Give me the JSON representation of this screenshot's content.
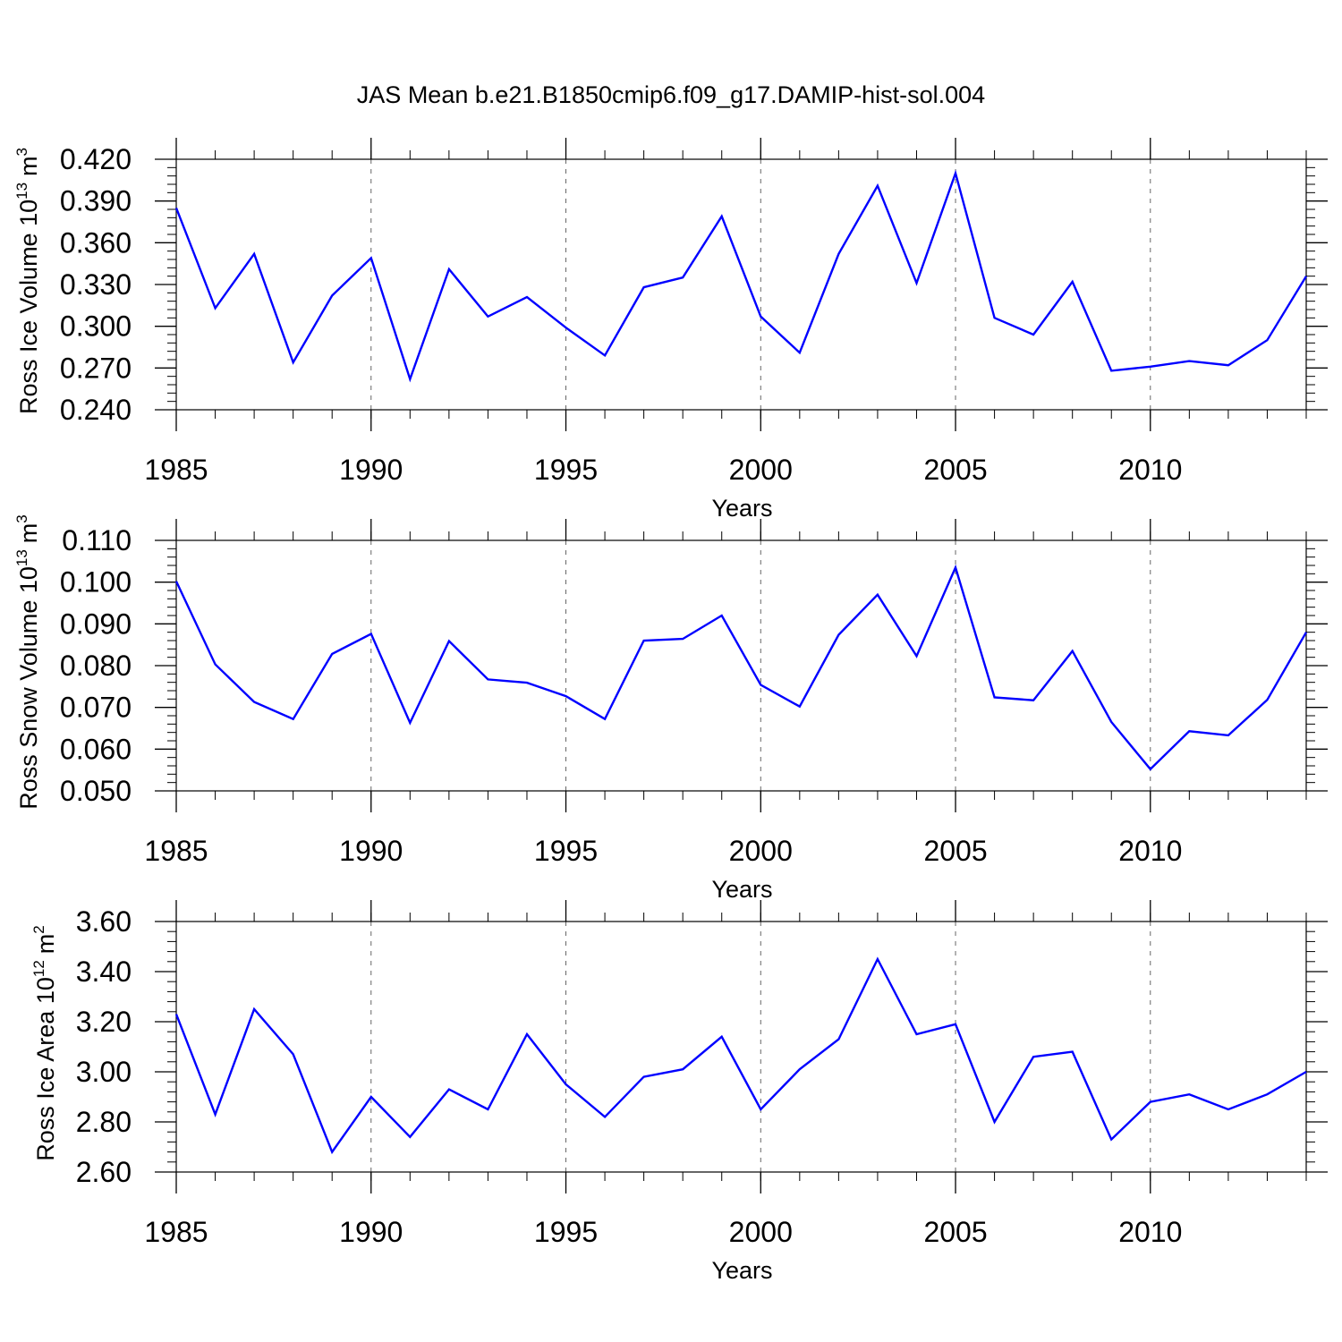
{
  "title": "JAS Mean b.e21.B1850cmip6.f09_g17.DAMIP-hist-sol.004",
  "colors": {
    "line": "#0000ff",
    "axis": "#000000",
    "grid": "#666666",
    "background": "#ffffff"
  },
  "chart_data": [
    {
      "type": "line",
      "ylabel_base": "Ross Ice Volume 10",
      "ylabel_exp": "13",
      "ylabel_unit": "m",
      "ylabel_unit_exp": "3",
      "xlabel": "Years",
      "xlim": [
        1985,
        2014
      ],
      "ylim": [
        0.24,
        0.42
      ],
      "ytick_values": [
        0.24,
        0.27,
        0.3,
        0.33,
        0.36,
        0.39,
        0.42
      ],
      "ytick_labels": [
        "0.240",
        "0.270",
        "0.300",
        "0.330",
        "0.360",
        "0.390",
        "0.420"
      ],
      "xtick_values": [
        1985,
        1990,
        1995,
        2000,
        2005,
        2010
      ],
      "xtick_labels": [
        "1985",
        "1990",
        "1995",
        "2000",
        "2005",
        "2010"
      ],
      "grid": "vertical dashed at major x ticks",
      "series": [
        {
          "name": "Ross Ice Volume",
          "x": [
            1985,
            1986,
            1987,
            1988,
            1989,
            1990,
            1991,
            1992,
            1993,
            1994,
            1995,
            1996,
            1997,
            1998,
            1999,
            2000,
            2001,
            2002,
            2003,
            2004,
            2005,
            2006,
            2007,
            2008,
            2009,
            2010,
            2011,
            2012,
            2013,
            2014
          ],
          "values": [
            0.385,
            0.313,
            0.352,
            0.274,
            0.322,
            0.349,
            0.262,
            0.341,
            0.307,
            0.321,
            0.299,
            0.279,
            0.328,
            0.335,
            0.379,
            0.307,
            0.281,
            0.352,
            0.401,
            0.331,
            0.41,
            0.306,
            0.294,
            0.332,
            0.268,
            0.271,
            0.275,
            0.272,
            0.29,
            0.336
          ]
        }
      ]
    },
    {
      "type": "line",
      "ylabel_base": "Ross Snow Volume 10",
      "ylabel_exp": "13",
      "ylabel_unit": "m",
      "ylabel_unit_exp": "3",
      "xlabel": "Years",
      "xlim": [
        1985,
        2014
      ],
      "ylim": [
        0.05,
        0.11
      ],
      "ytick_values": [
        0.05,
        0.06,
        0.07,
        0.08,
        0.09,
        0.1,
        0.11
      ],
      "ytick_labels": [
        "0.050",
        "0.060",
        "0.070",
        "0.080",
        "0.090",
        "0.100",
        "0.110"
      ],
      "xtick_values": [
        1985,
        1990,
        1995,
        2000,
        2005,
        2010
      ],
      "xtick_labels": [
        "1985",
        "1990",
        "1995",
        "2000",
        "2005",
        "2010"
      ],
      "grid": "vertical dashed at major x ticks",
      "series": [
        {
          "name": "Ross Snow Volume",
          "x": [
            1985,
            1986,
            1987,
            1988,
            1989,
            1990,
            1991,
            1992,
            1993,
            1994,
            1995,
            1996,
            1997,
            1998,
            1999,
            2000,
            2001,
            2002,
            2003,
            2004,
            2005,
            2006,
            2007,
            2008,
            2009,
            2010,
            2011,
            2012,
            2013,
            2014
          ],
          "values": [
            0.1002,
            0.0803,
            0.0713,
            0.0672,
            0.0828,
            0.0876,
            0.0663,
            0.0859,
            0.0767,
            0.0759,
            0.0727,
            0.0672,
            0.086,
            0.0864,
            0.092,
            0.0754,
            0.0702,
            0.0874,
            0.097,
            0.0823,
            0.1035,
            0.0724,
            0.0717,
            0.0835,
            0.0665,
            0.0552,
            0.0643,
            0.0633,
            0.0718,
            0.088
          ]
        }
      ]
    },
    {
      "type": "line",
      "ylabel_base": "Ross Ice Area 10",
      "ylabel_exp": "12",
      "ylabel_unit": "m",
      "ylabel_unit_exp": "2",
      "xlabel": "Years",
      "xlim": [
        1985,
        2014
      ],
      "ylim": [
        2.6,
        3.6
      ],
      "ytick_values": [
        2.6,
        2.8,
        3.0,
        3.2,
        3.4,
        3.6
      ],
      "ytick_labels": [
        "2.60",
        "2.80",
        "3.00",
        "3.20",
        "3.40",
        "3.60"
      ],
      "xtick_values": [
        1985,
        1990,
        1995,
        2000,
        2005,
        2010
      ],
      "xtick_labels": [
        "1985",
        "1990",
        "1995",
        "2000",
        "2005",
        "2010"
      ],
      "grid": "vertical dashed at major x ticks",
      "series": [
        {
          "name": "Ross Ice Area",
          "x": [
            1985,
            1986,
            1987,
            1988,
            1989,
            1990,
            1991,
            1992,
            1993,
            1994,
            1995,
            1996,
            1997,
            1998,
            1999,
            2000,
            2001,
            2002,
            2003,
            2004,
            2005,
            2006,
            2007,
            2008,
            2009,
            2010,
            2011,
            2012,
            2013,
            2014
          ],
          "values": [
            3.23,
            2.83,
            3.25,
            3.07,
            2.68,
            2.9,
            2.74,
            2.93,
            2.85,
            3.15,
            2.95,
            2.82,
            2.98,
            3.01,
            3.14,
            2.85,
            3.01,
            3.13,
            3.45,
            3.15,
            3.19,
            2.8,
            3.06,
            3.08,
            2.73,
            2.88,
            2.91,
            2.85,
            2.91,
            3.0
          ]
        }
      ]
    }
  ]
}
